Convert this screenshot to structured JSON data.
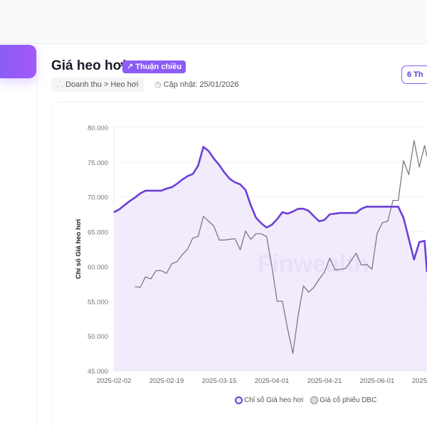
{
  "header": {
    "title": "Giá heo hơi",
    "badge": "↗ Thuận chiều",
    "breadcrumb": "Doanh thu > Heo hơi",
    "updated": "Cập nhật: 25/01/2026",
    "period_button": "6 Th"
  },
  "colors": {
    "accent": "#8b5cf6",
    "primary_series": "#6d3fd6",
    "secondary_series": "#7a7a86",
    "area_fill": "#efe8fc"
  },
  "watermark": "Finwealth",
  "chart_data": {
    "type": "line",
    "ylabel": "Chỉ số Giá heo hơi",
    "ylim": [
      45000,
      80000
    ],
    "yticks": [
      "80.000",
      "75.000",
      "70.000",
      "65.000",
      "60.000",
      "55.000",
      "50.000",
      "45.000"
    ],
    "xticks": [
      "2025-02-02",
      "2025-02-19",
      "2025-03-15",
      "2025-04-01",
      "2025-04-21",
      "2025-06-01",
      "2025"
    ],
    "grid": true,
    "legend_position": "bottom",
    "series": [
      {
        "name": "Chỉ số Giá heo hơi",
        "area": true,
        "values": [
          67800,
          68200,
          68800,
          69400,
          69900,
          70500,
          70900,
          70900,
          70900,
          70900,
          71200,
          71400,
          71900,
          72500,
          73000,
          73300,
          74500,
          77200,
          76600,
          75500,
          74600,
          73500,
          72600,
          72100,
          71800,
          71000,
          68800,
          67000,
          66200,
          65600,
          66000,
          66800,
          67800,
          67600,
          67900,
          68300,
          68300,
          68000,
          67200,
          66500,
          66700,
          67500,
          67600,
          67700,
          67700,
          67700,
          67700,
          68300,
          68600,
          68600,
          68600,
          68600,
          68600,
          68600,
          68600,
          67000,
          64000,
          61000,
          63500,
          63700,
          59200
        ]
      },
      {
        "name": "Giá cổ phiếu DBC",
        "area": false,
        "values": [
          null,
          null,
          null,
          null,
          57100,
          57000,
          58500,
          58200,
          59400,
          59400,
          59000,
          60400,
          60700,
          61700,
          62500,
          64100,
          64300,
          67200,
          66500,
          65800,
          63800,
          63800,
          63900,
          64000,
          62400,
          65100,
          63900,
          64700,
          64700,
          64300,
          60000,
          55000,
          55000,
          51000,
          47500,
          53000,
          57200,
          56300,
          57000,
          58200,
          59200,
          61200,
          59500,
          59600,
          59700,
          60800,
          61900,
          60200,
          60300,
          59600,
          64800,
          66300,
          66500,
          69500,
          69500,
          75200,
          73200,
          78100,
          74300,
          77400,
          75800
        ]
      }
    ]
  }
}
